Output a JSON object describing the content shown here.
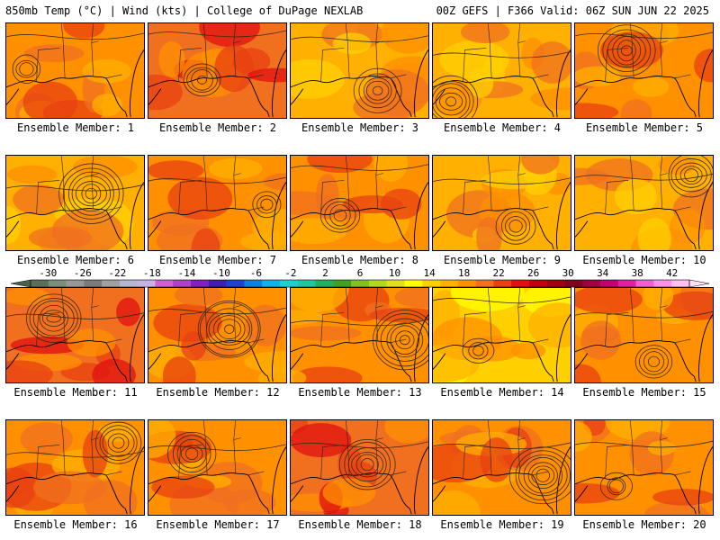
{
  "header": {
    "left": "850mb Temp (°C) | Wind (kts) | College of DuPage NEXLAB",
    "right": "00Z GEFS | F366 Valid: 06Z SUN JUN 22 2025"
  },
  "members": [
    {
      "label": "Ensemble Member: 1",
      "tone": "warm"
    },
    {
      "label": "Ensemble Member: 2",
      "tone": "hot"
    },
    {
      "label": "Ensemble Member: 3",
      "tone": "mild"
    },
    {
      "label": "Ensemble Member: 4",
      "tone": "mild"
    },
    {
      "label": "Ensemble Member: 5",
      "tone": "warm"
    },
    {
      "label": "Ensemble Member: 6",
      "tone": "mild"
    },
    {
      "label": "Ensemble Member: 7",
      "tone": "warm"
    },
    {
      "label": "Ensemble Member: 8",
      "tone": "warm"
    },
    {
      "label": "Ensemble Member: 9",
      "tone": "mild"
    },
    {
      "label": "Ensemble Member: 10",
      "tone": "mild"
    },
    {
      "label": "Ensemble Member: 11",
      "tone": "hot"
    },
    {
      "label": "Ensemble Member: 12",
      "tone": "warm"
    },
    {
      "label": "Ensemble Member: 13",
      "tone": "warm"
    },
    {
      "label": "Ensemble Member: 14",
      "tone": "cool"
    },
    {
      "label": "Ensemble Member: 15",
      "tone": "warm"
    },
    {
      "label": "Ensemble Member: 16",
      "tone": "warm"
    },
    {
      "label": "Ensemble Member: 17",
      "tone": "warm"
    },
    {
      "label": "Ensemble Member: 18",
      "tone": "hot"
    },
    {
      "label": "Ensemble Member: 19",
      "tone": "warm"
    },
    {
      "label": "Ensemble Member: 20",
      "tone": "warm"
    }
  ],
  "colorbar": {
    "tick_labels": [
      "-30",
      "-26",
      "-22",
      "-18",
      "-14",
      "-10",
      "-6",
      "-2",
      "2",
      "6",
      "10",
      "14",
      "18",
      "22",
      "26",
      "30",
      "34",
      "38",
      "42"
    ],
    "tick_values": [
      -30,
      -26,
      -22,
      -18,
      -14,
      -10,
      -6,
      -2,
      2,
      6,
      10,
      14,
      18,
      22,
      26,
      30,
      34,
      38,
      42
    ],
    "colors": [
      "#5a6e5a",
      "#7a8f7a",
      "#989898",
      "#7b7b7b",
      "#a0a0a0",
      "#b6b6d0",
      "#c8b0e0",
      "#d060d0",
      "#b040c8",
      "#8020c0",
      "#4020b0",
      "#2040d0",
      "#1080e0",
      "#10b0e8",
      "#20d0d0",
      "#20c8a0",
      "#20b060",
      "#40a020",
      "#80c020",
      "#b0d820",
      "#e0e020",
      "#ffff00",
      "#ffd000",
      "#ffb000",
      "#ff9000",
      "#f07020",
      "#e84010",
      "#e01010",
      "#c00010",
      "#a00010",
      "#800020",
      "#a00040",
      "#c00070",
      "#e020a0",
      "#f060d0",
      "#ff90e8",
      "#ffc0f0"
    ]
  }
}
